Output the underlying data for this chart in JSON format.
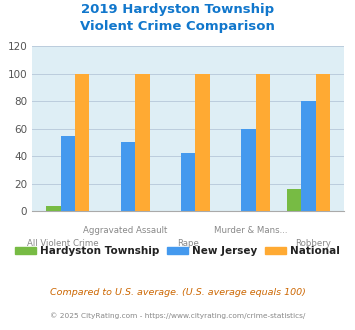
{
  "title": "2019 Hardyston Township\nViolent Crime Comparison",
  "categories": [
    "All Violent Crime",
    "Aggravated Assault",
    "Rape",
    "Murder & Mans...",
    "Robbery"
  ],
  "hardyston": [
    4,
    0,
    0,
    0,
    16
  ],
  "new_jersey": [
    55,
    50,
    42,
    60,
    80
  ],
  "national": [
    100,
    100,
    100,
    100,
    100
  ],
  "color_hardyston": "#77bb44",
  "color_nj": "#4499ee",
  "color_national": "#ffaa33",
  "ylim": [
    0,
    120
  ],
  "yticks": [
    0,
    20,
    40,
    60,
    80,
    100,
    120
  ],
  "title_color": "#1177cc",
  "bg_color": "#deeef5",
  "legend_labels": [
    "Hardyston Township",
    "New Jersey",
    "National"
  ],
  "footnote1": "Compared to U.S. average. (U.S. average equals 100)",
  "footnote2": "© 2025 CityRating.com - https://www.cityrating.com/crime-statistics/",
  "footnote1_color": "#cc6600",
  "footnote2_color": "#888888",
  "grid_color": "#bbccdd",
  "label_upper_row": [
    1,
    3
  ],
  "label_lower_row": [
    0,
    2,
    4
  ]
}
